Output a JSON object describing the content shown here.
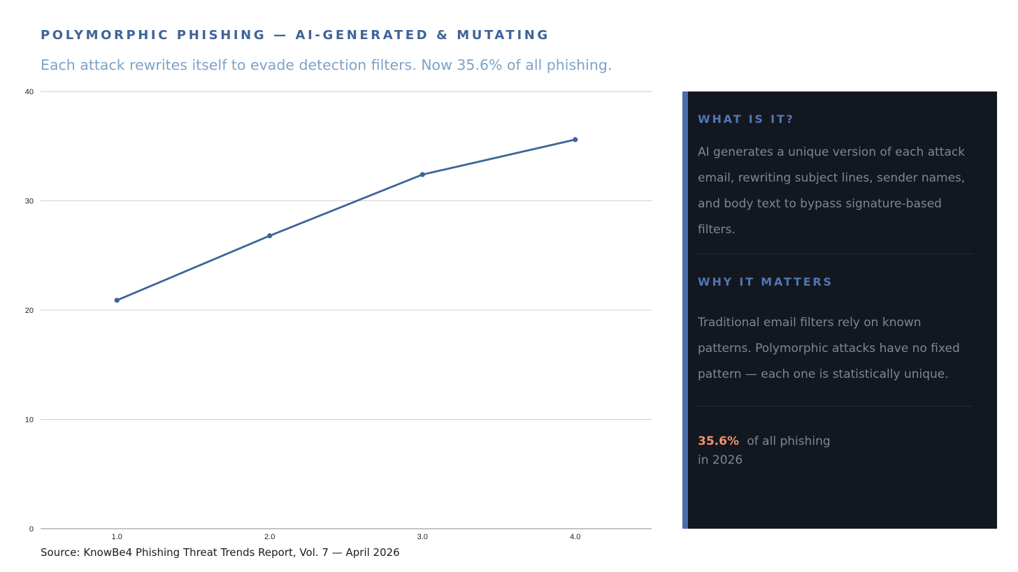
{
  "header": {
    "title": "POLYMORPHIC PHISHING — AI-GENERATED & MUTATING",
    "subtitle": "Each attack rewrites itself to evade detection filters. Now 35.6% of all phishing."
  },
  "chart_data": {
    "type": "line",
    "x": [
      1.0,
      2.0,
      3.0,
      4.0
    ],
    "x_tick_labels": [
      "1.0",
      "2.0",
      "3.0",
      "4.0"
    ],
    "y_ticks": [
      0,
      10,
      20,
      30,
      40
    ],
    "series": [
      {
        "values": [
          20.9,
          26.8,
          32.4,
          35.6
        ]
      }
    ],
    "xlim": [
      0.5,
      4.5
    ],
    "ylim": [
      0,
      40
    ],
    "grid": "horizontal",
    "title": "",
    "xlabel": "",
    "ylabel": "",
    "line_color": "#3e6499"
  },
  "source": "Source: KnowBe4 Phishing Threat Trends Report, Vol. 7 — April 2026",
  "panel": {
    "what_heading": "WHAT IS IT?",
    "what_text": "AI generates a unique version of each attack email, rewriting subject lines, sender names, and body text to bypass signature-based filters.",
    "why_heading": "WHY IT MATTERS",
    "why_text": "Traditional email filters rely on known patterns. Polymorphic attacks have no fixed pattern — each one is statistically unique.",
    "stat_value": "35.6%",
    "stat_text_1": "of all phishing",
    "stat_text_2": "in 2026"
  },
  "colors": {
    "accent": "#3e6499",
    "panel_bg": "#131720",
    "highlight": "#f0926a"
  }
}
